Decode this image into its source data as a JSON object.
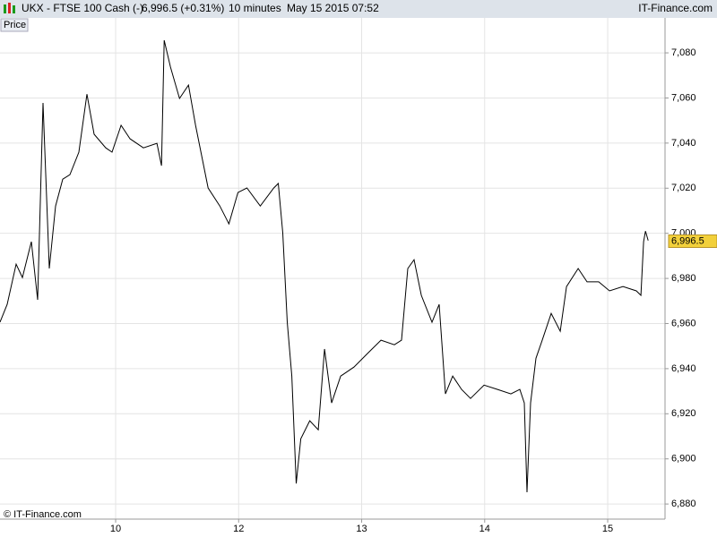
{
  "header": {
    "symbol": "UKX - FTSE 100 Cash (-)",
    "quote": "6,996.5 (+0.31%)",
    "interval": "10 minutes",
    "timestamp": "May 15 2015 07:52",
    "brand": "IT-Finance.com"
  },
  "footer": "© IT-Finance.com",
  "chart_data": {
    "type": "line",
    "x": [
      0.06,
      0.118,
      0.191,
      0.242,
      0.315,
      0.366,
      0.41,
      0.461,
      0.512,
      0.57,
      0.628,
      0.701,
      0.767,
      0.825,
      0.92,
      0.971,
      1.044,
      1.117,
      1.226,
      1.336,
      1.373,
      1.395,
      1.446,
      1.519,
      1.592,
      1.65,
      1.701,
      1.752,
      1.847,
      1.921,
      1.994,
      2.067,
      2.176,
      2.286,
      2.322,
      2.359,
      2.395,
      2.432,
      2.468,
      2.505,
      2.578,
      2.647,
      2.698,
      2.756,
      2.829,
      2.938,
      3.047,
      3.157,
      3.266,
      3.324,
      3.375,
      3.426,
      3.485,
      3.572,
      3.63,
      3.681,
      3.74,
      3.812,
      3.885,
      3.995,
      4.104,
      4.213,
      4.286,
      4.322,
      4.344,
      4.373,
      4.417,
      4.468,
      4.541,
      4.614,
      4.665,
      4.76,
      4.832,
      4.927,
      5.015,
      5.124,
      5.233,
      5.27,
      5.292,
      5.307,
      5.329
    ],
    "series": [
      {
        "name": "Price",
        "color": "#000000",
        "values": [
          6960.6,
          6968.5,
          6986.3,
          6980.4,
          6996.3,
          6970.5,
          7057.8,
          6984.4,
          7012.1,
          7024.0,
          7026.0,
          7036.0,
          7061.7,
          7043.9,
          7037.9,
          7036.0,
          7047.9,
          7041.9,
          7037.9,
          7039.9,
          7030.0,
          7085.6,
          7073.7,
          7059.8,
          7065.7,
          7047.9,
          7034.0,
          7020.1,
          7012.1,
          7004.2,
          7018.1,
          7020.1,
          7012.1,
          7020.1,
          7022.1,
          7000.2,
          6960.6,
          6936.7,
          6889.1,
          6908.9,
          6916.9,
          6912.9,
          6948.7,
          6924.8,
          6936.7,
          6940.7,
          6946.7,
          6952.6,
          6950.6,
          6952.6,
          6984.4,
          6988.3,
          6972.5,
          6960.6,
          6968.5,
          6928.8,
          6936.7,
          6930.8,
          6926.8,
          6932.7,
          6930.8,
          6928.8,
          6930.8,
          6924.8,
          6885.2,
          6924.8,
          6944.6,
          6952.6,
          6964.5,
          6956.6,
          6976.4,
          6984.4,
          6978.5,
          6978.5,
          6974.5,
          6976.4,
          6974.5,
          6972.5,
          6996.3,
          7001.0,
          6996.8
        ]
      }
    ],
    "xlim": [
      0.06,
      5.466
    ],
    "xticks": [
      {
        "value": 1,
        "label": "10"
      },
      {
        "value": 2,
        "label": "12"
      },
      {
        "value": 3,
        "label": "13"
      },
      {
        "value": 4,
        "label": "14"
      },
      {
        "value": 5,
        "label": "15"
      }
    ],
    "ylim": [
      6873.3,
      7095.5
    ],
    "yticks": [
      {
        "value": 6880,
        "label": "6,880"
      },
      {
        "value": 6900,
        "label": "6,900"
      },
      {
        "value": 6920,
        "label": "6,920"
      },
      {
        "value": 6940,
        "label": "6,940"
      },
      {
        "value": 6960,
        "label": "6,960"
      },
      {
        "value": 6980,
        "label": "6,980"
      },
      {
        "value": 7000,
        "label": "7,000"
      },
      {
        "value": 7020,
        "label": "7,020"
      },
      {
        "value": 7040,
        "label": "7,040"
      },
      {
        "value": 7060,
        "label": "7,060"
      },
      {
        "value": 7080,
        "label": "7,080"
      }
    ],
    "grid": true,
    "price_marker": {
      "value": 6996.5,
      "label": "6,996.5",
      "color": "#f2d03b"
    }
  }
}
